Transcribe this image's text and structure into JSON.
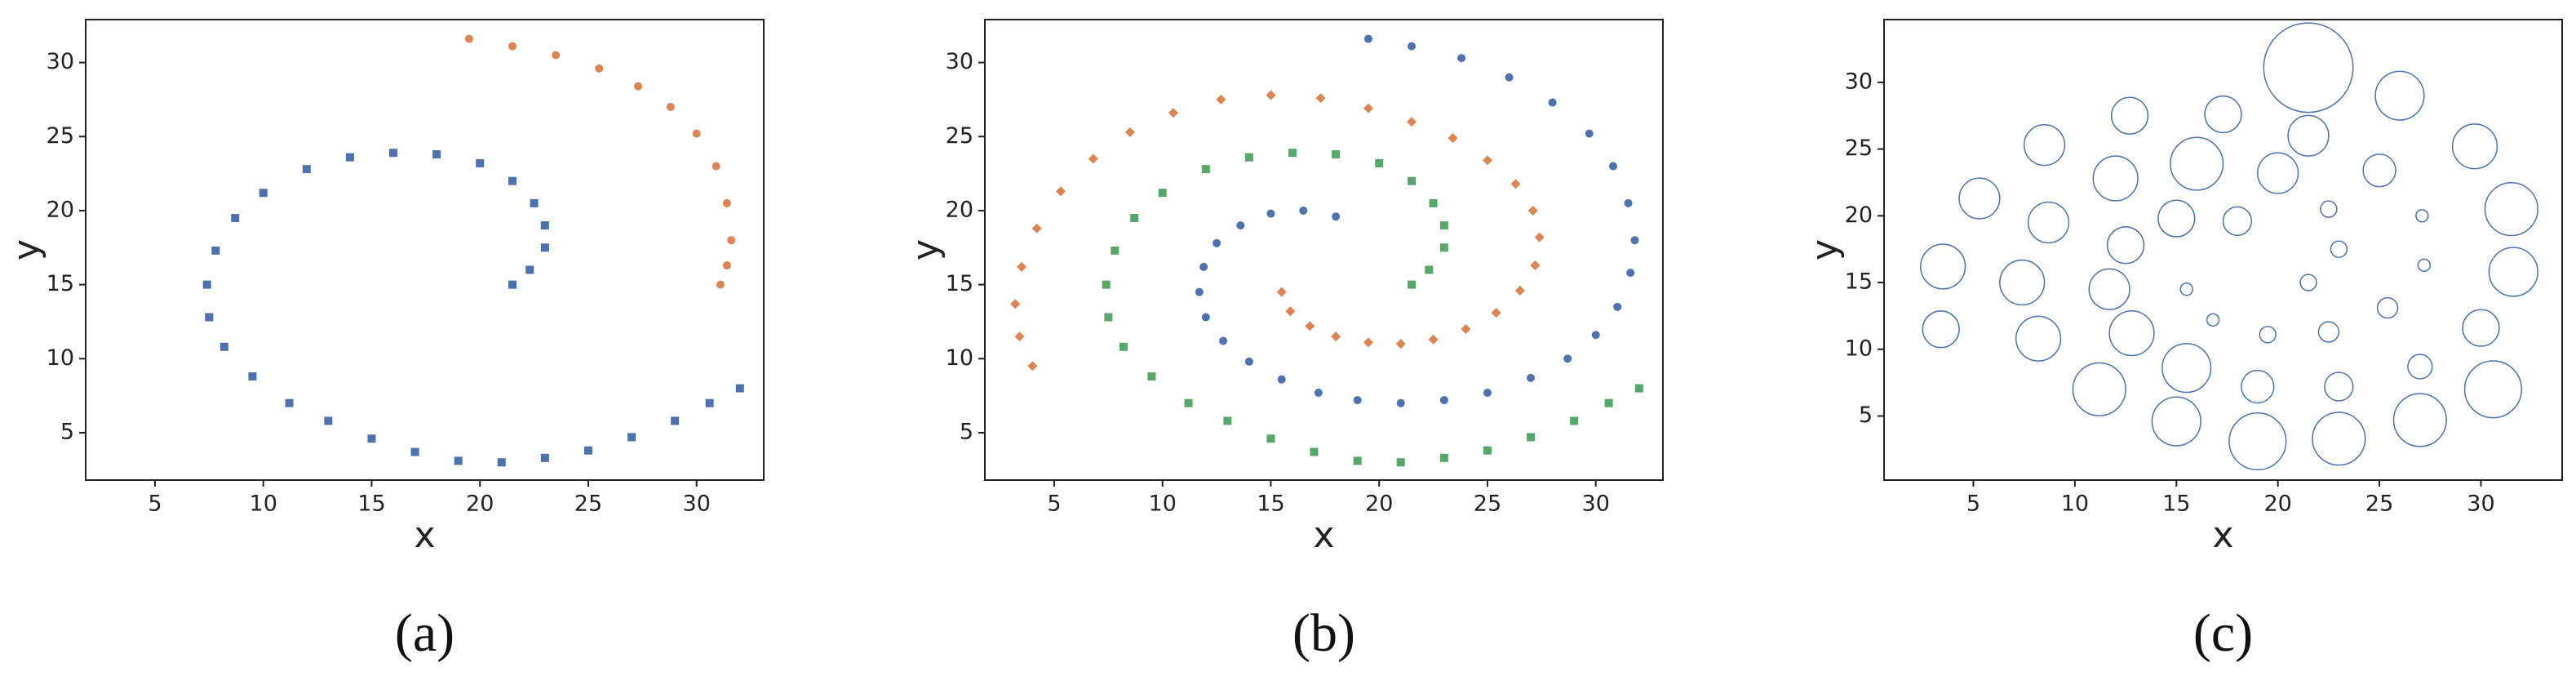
{
  "chart_data": [
    {
      "type": "scatter",
      "caption": "(a)",
      "x_label": "x",
      "y_label": "y",
      "xlim": [
        1.8,
        33.1
      ],
      "ylim": [
        1.8,
        32.9
      ],
      "xticks": [
        5,
        10,
        15,
        20,
        25,
        30
      ],
      "yticks": [
        5,
        10,
        15,
        20,
        25,
        30
      ],
      "series": [
        {
          "color": "#4c72b0",
          "marker": "square",
          "x": [
            21.5,
            22.3,
            23,
            23,
            22.5,
            21.5,
            20,
            18,
            16,
            14,
            12,
            10,
            8.7,
            7.8,
            7.4,
            7.5,
            8.2,
            9.5,
            11.2,
            13,
            15,
            17,
            19,
            21,
            23,
            25,
            27,
            29,
            30.6,
            32
          ],
          "y": [
            15,
            16,
            17.5,
            19,
            20.5,
            22,
            23.2,
            23.8,
            23.9,
            23.6,
            22.8,
            21.2,
            19.5,
            17.3,
            15,
            12.8,
            10.8,
            8.8,
            7,
            5.8,
            4.6,
            3.7,
            3.1,
            3,
            3.3,
            3.8,
            4.7,
            5.8,
            7,
            8
          ]
        },
        {
          "color": "#dd8452",
          "marker": "circle",
          "x": [
            19.5,
            21.5,
            23.5,
            25.5,
            27.3,
            28.8,
            30,
            30.9,
            31.4,
            31.6,
            31.4,
            31.1
          ],
          "y": [
            31.6,
            31.1,
            30.5,
            29.6,
            28.4,
            27,
            25.2,
            23,
            20.5,
            18,
            16.3,
            15
          ]
        }
      ]
    },
    {
      "type": "scatter",
      "caption": "(b)",
      "x_label": "x",
      "y_label": "y",
      "xlim": [
        1.8,
        33.1
      ],
      "ylim": [
        1.8,
        32.9
      ],
      "xticks": [
        5,
        10,
        15,
        20,
        25,
        30
      ],
      "yticks": [
        5,
        10,
        15,
        20,
        25,
        30
      ],
      "series": [
        {
          "color": "#4c72b0",
          "marker": "circle",
          "x": [
            18,
            16.5,
            15,
            13.6,
            12.5,
            11.9,
            11.7,
            12,
            12.8,
            14,
            15.5,
            17.2,
            19,
            21,
            23,
            25,
            27,
            28.7,
            30,
            31,
            31.6,
            31.8,
            31.5,
            30.8,
            29.7,
            28,
            26,
            23.8,
            21.5,
            19.5
          ],
          "y": [
            19.6,
            20,
            19.8,
            19,
            17.8,
            16.2,
            14.5,
            12.8,
            11.2,
            9.8,
            8.6,
            7.7,
            7.2,
            7,
            7.2,
            7.7,
            8.7,
            10,
            11.6,
            13.5,
            15.8,
            18,
            20.5,
            23,
            25.2,
            27.3,
            29,
            30.3,
            31.1,
            31.6
          ]
        },
        {
          "color": "#dd8452",
          "marker": "diamond",
          "x": [
            15.5,
            15.9,
            16.8,
            18,
            19.5,
            21,
            22.5,
            24,
            25.4,
            26.5,
            27.2,
            27.4,
            27.1,
            26.3,
            25,
            23.4,
            21.5,
            19.5,
            17.3,
            15,
            12.7,
            10.5,
            8.5,
            6.8,
            5.3,
            4.2,
            3.5,
            3.2,
            3.4,
            4
          ],
          "y": [
            14.5,
            13.2,
            12.2,
            11.5,
            11.1,
            11,
            11.3,
            12,
            13.1,
            14.6,
            16.3,
            18.2,
            20,
            21.8,
            23.4,
            24.9,
            26,
            26.9,
            27.6,
            27.8,
            27.5,
            26.6,
            25.3,
            23.5,
            21.3,
            18.8,
            16.2,
            13.7,
            11.5,
            9.5
          ]
        },
        {
          "color": "#55a868",
          "marker": "square",
          "x": [
            21.5,
            22.3,
            23,
            23,
            22.5,
            21.5,
            20,
            18,
            16,
            14,
            12,
            10,
            8.7,
            7.8,
            7.4,
            7.5,
            8.2,
            9.5,
            11.2,
            13,
            15,
            17,
            19,
            21,
            23,
            25,
            27,
            29,
            30.6,
            32
          ],
          "y": [
            15,
            16,
            17.5,
            19,
            20.5,
            22,
            23.2,
            23.8,
            23.9,
            23.6,
            22.8,
            21.2,
            19.5,
            17.3,
            15,
            12.8,
            10.8,
            8.8,
            7,
            5.8,
            4.6,
            3.7,
            3.1,
            3,
            3.3,
            3.8,
            4.7,
            5.8,
            7,
            8
          ]
        }
      ]
    },
    {
      "type": "bubble",
      "caption": "(c)",
      "x_label": "x",
      "y_label": "y",
      "xlim": [
        0.6,
        34
      ],
      "ylim": [
        0.2,
        34.7
      ],
      "xticks": [
        5,
        10,
        15,
        20,
        25,
        30
      ],
      "yticks": [
        5,
        10,
        15,
        20,
        25,
        30
      ],
      "series": [
        {
          "color": "#4c72b0",
          "x": [
            18,
            15,
            12.5,
            11.7,
            12.8,
            15.5,
            19,
            23,
            27,
            30,
            31.6,
            31.5,
            29.7,
            26,
            21.5,
            15.5,
            16.8,
            19.5,
            22.5,
            25.4,
            27.2,
            27.1,
            25,
            21.5,
            17.3,
            12.7,
            8.5,
            5.3,
            3.5,
            3.4,
            21.5,
            23,
            22.5,
            20,
            16,
            12,
            8.7,
            7.4,
            8.2,
            11.2,
            15,
            19,
            23,
            27,
            30.6
          ],
          "y": [
            19.6,
            19.8,
            17.8,
            14.5,
            11.2,
            8.6,
            7.2,
            7.2,
            8.7,
            11.6,
            15.8,
            20.5,
            25.2,
            29,
            31.1,
            14.5,
            12.2,
            11.1,
            11.3,
            13.1,
            16.3,
            20,
            23.4,
            26,
            27.6,
            27.5,
            25.3,
            21.3,
            16.2,
            11.5,
            15,
            17.5,
            20.5,
            23.2,
            23.9,
            22.8,
            19.5,
            15,
            10.8,
            7,
            4.6,
            3.1,
            3.3,
            4.7,
            7
          ],
          "sizes": [
            0.7,
            0.9,
            0.9,
            1,
            1.1,
            1.2,
            0.8,
            0.7,
            0.6,
            0.9,
            1.2,
            1.3,
            1.1,
            1.2,
            2.2,
            0.3,
            0.3,
            0.4,
            0.5,
            0.5,
            0.3,
            0.3,
            0.8,
            1,
            0.9,
            0.9,
            1,
            1,
            1.1,
            0.9,
            0.4,
            0.4,
            0.4,
            1,
            1.3,
            1.1,
            1,
            1.1,
            1.1,
            1.3,
            1.2,
            1.4,
            1.3,
            1.3,
            1.4
          ]
        }
      ]
    }
  ]
}
